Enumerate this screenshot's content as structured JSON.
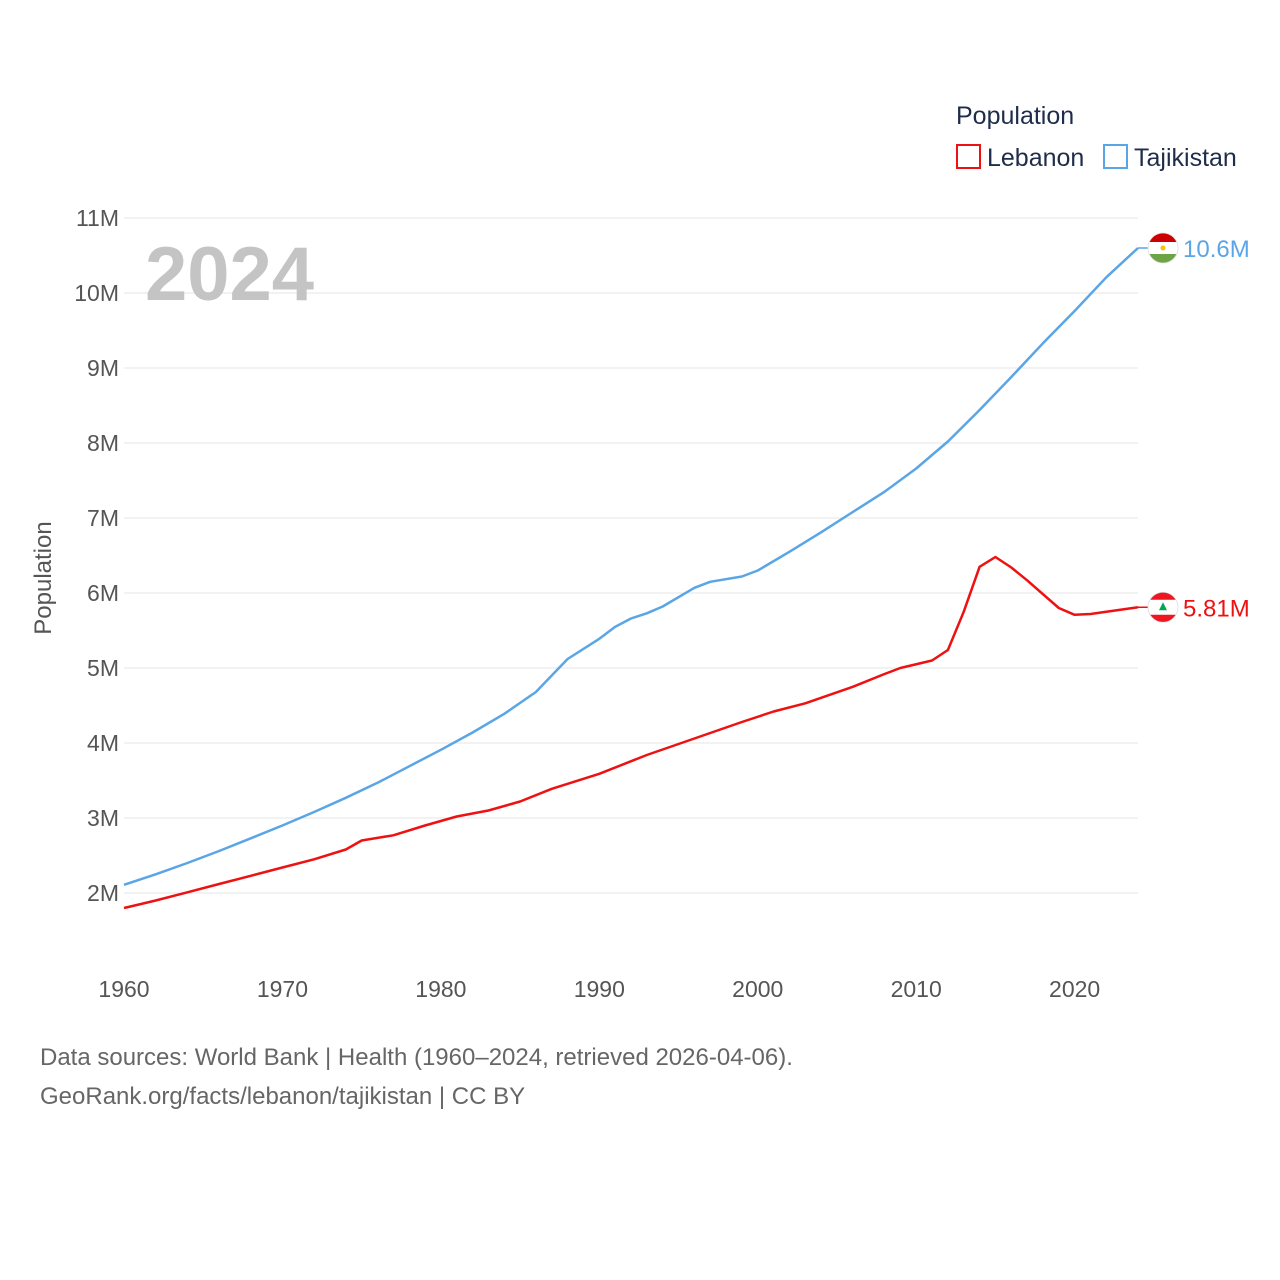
{
  "chart_data": {
    "type": "line",
    "legend_title": "Population",
    "legend_position": "top-right",
    "watermark_year": "2024",
    "ylabel": "Population",
    "xlabel": "",
    "xlim": [
      1960,
      2024
    ],
    "ylim": [
      1400000,
      11000000
    ],
    "x_ticks": [
      1960,
      1970,
      1980,
      1990,
      2000,
      2010,
      2020
    ],
    "y_ticks": [
      {
        "value": 2000000,
        "label": "2M"
      },
      {
        "value": 3000000,
        "label": "3M"
      },
      {
        "value": 4000000,
        "label": "4M"
      },
      {
        "value": 5000000,
        "label": "5M"
      },
      {
        "value": 6000000,
        "label": "6M"
      },
      {
        "value": 7000000,
        "label": "7M"
      },
      {
        "value": 8000000,
        "label": "8M"
      },
      {
        "value": 9000000,
        "label": "9M"
      },
      {
        "value": 10000000,
        "label": "10M"
      },
      {
        "value": 11000000,
        "label": "11M"
      }
    ],
    "grid": true,
    "series": [
      {
        "name": "Lebanon",
        "color": "#ee1111",
        "end_label": "5.81M",
        "flag": "lebanon-flag-icon",
        "points": [
          [
            1960,
            1800000
          ],
          [
            1962,
            1900000
          ],
          [
            1964,
            2010000
          ],
          [
            1966,
            2120000
          ],
          [
            1968,
            2230000
          ],
          [
            1970,
            2340000
          ],
          [
            1972,
            2450000
          ],
          [
            1974,
            2580000
          ],
          [
            1975,
            2700000
          ],
          [
            1977,
            2770000
          ],
          [
            1979,
            2900000
          ],
          [
            1981,
            3020000
          ],
          [
            1983,
            3100000
          ],
          [
            1985,
            3220000
          ],
          [
            1987,
            3390000
          ],
          [
            1990,
            3590000
          ],
          [
            1993,
            3840000
          ],
          [
            1996,
            4060000
          ],
          [
            1999,
            4280000
          ],
          [
            2001,
            4420000
          ],
          [
            2003,
            4530000
          ],
          [
            2006,
            4750000
          ],
          [
            2008,
            4920000
          ],
          [
            2009,
            5000000
          ],
          [
            2011,
            5100000
          ],
          [
            2012,
            5240000
          ],
          [
            2013,
            5750000
          ],
          [
            2014,
            6350000
          ],
          [
            2015,
            6480000
          ],
          [
            2016,
            6340000
          ],
          [
            2017,
            6170000
          ],
          [
            2019,
            5800000
          ],
          [
            2020,
            5710000
          ],
          [
            2021,
            5720000
          ],
          [
            2022,
            5750000
          ],
          [
            2023,
            5780000
          ],
          [
            2024,
            5810000
          ]
        ]
      },
      {
        "name": "Tajikistan",
        "color": "#5aa5e6",
        "end_label": "10.6M",
        "flag": "tajikistan-flag-icon",
        "points": [
          [
            1960,
            2110000
          ],
          [
            1962,
            2250000
          ],
          [
            1964,
            2400000
          ],
          [
            1966,
            2560000
          ],
          [
            1968,
            2730000
          ],
          [
            1970,
            2900000
          ],
          [
            1972,
            3080000
          ],
          [
            1974,
            3270000
          ],
          [
            1976,
            3470000
          ],
          [
            1978,
            3690000
          ],
          [
            1980,
            3910000
          ],
          [
            1982,
            4140000
          ],
          [
            1984,
            4390000
          ],
          [
            1986,
            4680000
          ],
          [
            1988,
            5120000
          ],
          [
            1990,
            5390000
          ],
          [
            1991,
            5550000
          ],
          [
            1992,
            5660000
          ],
          [
            1993,
            5730000
          ],
          [
            1994,
            5820000
          ],
          [
            1996,
            6070000
          ],
          [
            1997,
            6150000
          ],
          [
            1999,
            6220000
          ],
          [
            2000,
            6300000
          ],
          [
            2002,
            6550000
          ],
          [
            2004,
            6810000
          ],
          [
            2006,
            7080000
          ],
          [
            2008,
            7350000
          ],
          [
            2010,
            7660000
          ],
          [
            2012,
            8020000
          ],
          [
            2014,
            8440000
          ],
          [
            2016,
            8880000
          ],
          [
            2018,
            9330000
          ],
          [
            2020,
            9760000
          ],
          [
            2022,
            10210000
          ],
          [
            2024,
            10600000
          ]
        ]
      }
    ]
  },
  "footer": {
    "sources": "Data sources: World Bank | Health (1960–2024, retrieved 2026-04-06).",
    "credit": "GeoRank.org/facts/lebanon/tajikistan | CC BY"
  }
}
